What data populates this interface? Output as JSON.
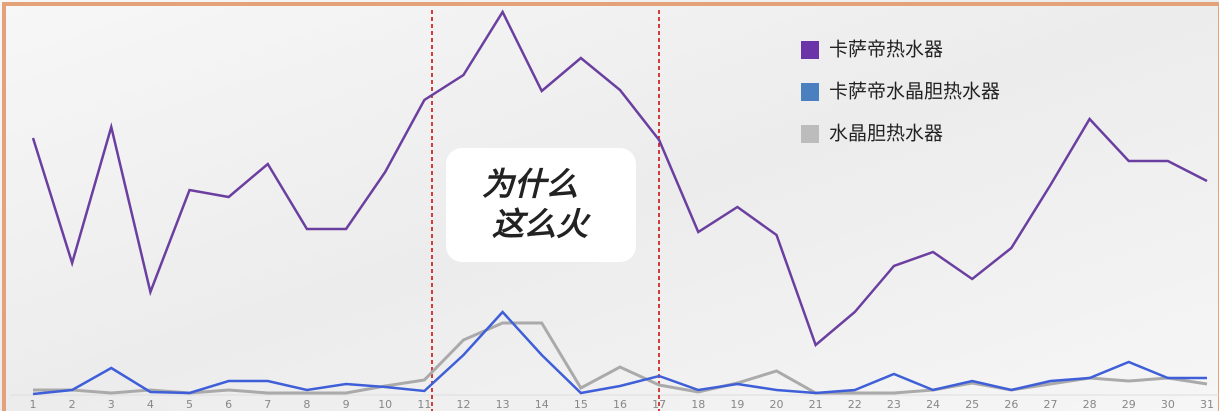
{
  "chart_data": {
    "type": "line",
    "categories": [
      "1",
      "2",
      "3",
      "4",
      "5",
      "6",
      "7",
      "8",
      "9",
      "10",
      "11",
      "12",
      "13",
      "14",
      "15",
      "16",
      "17",
      "18",
      "19",
      "20",
      "21",
      "22",
      "23",
      "24",
      "25",
      "26",
      "27",
      "28",
      "29",
      "30",
      "31"
    ],
    "series": [
      {
        "name": "卡萨帝热水器",
        "color": "#6b3fa0",
        "values": [
          257,
          132,
          268,
          103,
          205,
          198,
          231,
          166,
          166,
          223,
          295,
          320,
          383,
          304,
          337,
          305,
          255,
          163,
          188,
          160,
          50,
          83,
          129,
          143,
          116,
          147,
          210,
          276,
          234,
          234,
          214
        ]
      },
      {
        "name": "卡萨帝水晶胆热水器",
        "color": "#3f5fd8",
        "values": [
          1,
          5,
          27,
          3,
          2,
          14,
          14,
          5,
          11,
          8,
          4,
          40,
          83,
          40,
          2,
          9,
          19,
          5,
          11,
          5,
          2,
          5,
          21,
          5,
          14,
          5,
          14,
          17,
          33,
          17,
          17
        ]
      },
      {
        "name": "水晶胆热水器",
        "color": "#aaaaaa",
        "values": [
          5,
          5,
          2,
          5,
          2,
          5,
          2,
          2,
          2,
          9,
          15,
          55,
          72,
          72,
          7,
          28,
          10,
          3,
          12,
          24,
          2,
          2,
          2,
          5,
          12,
          5,
          11,
          17,
          14,
          17,
          11
        ]
      }
    ],
    "legend_colors": [
      "#6b35a8",
      "#4a7fc0",
      "#bcbcbc"
    ],
    "logo_text": [
      "为什么",
      "这么火"
    ]
  }
}
